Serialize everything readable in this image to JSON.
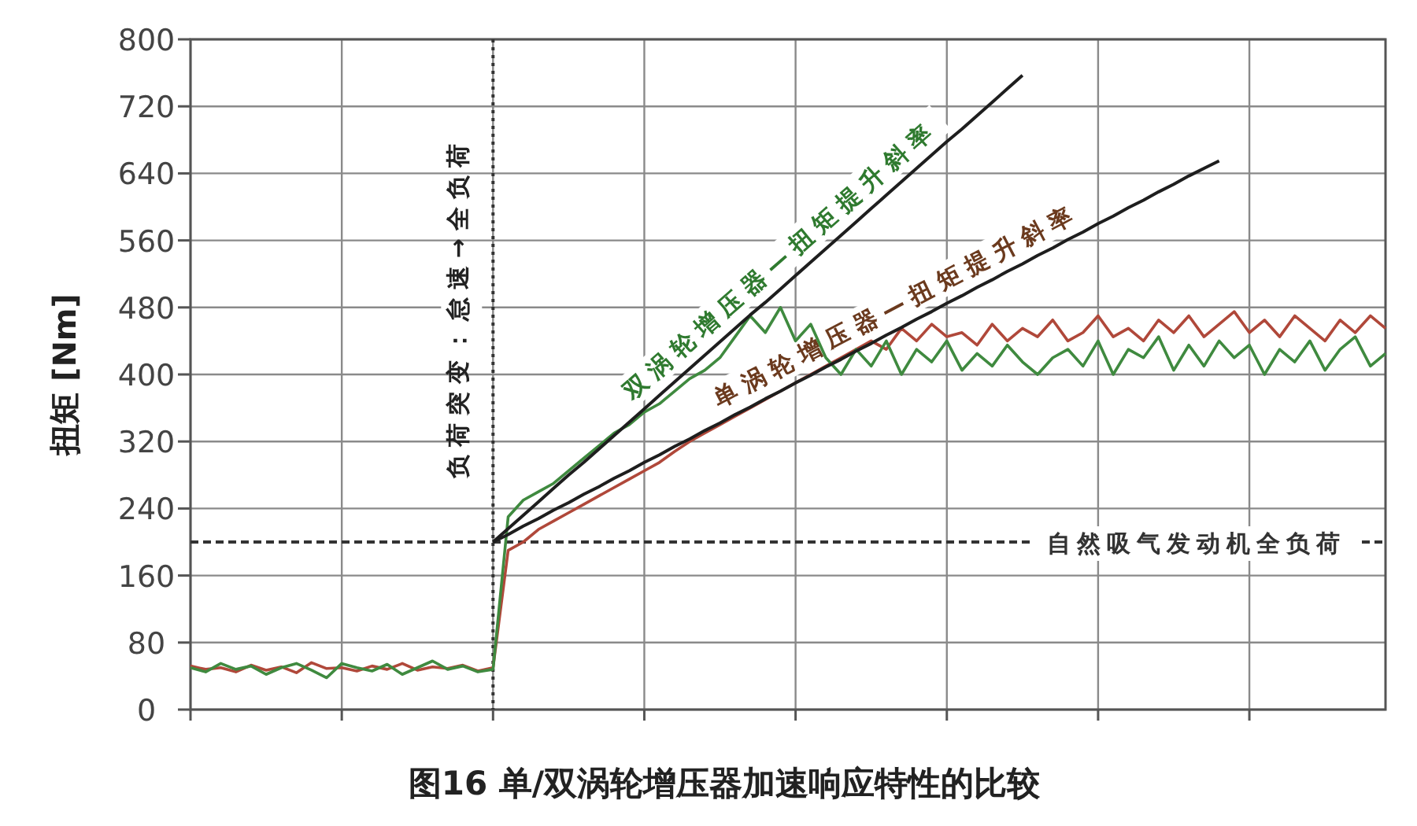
{
  "chart_data": {
    "type": "line",
    "title": "图16 单/双涡轮增压器加速响应特性的比较",
    "ylabel": "扭矩 [Nm]",
    "categories": [
      null,
      null,
      null,
      null,
      null,
      null,
      null,
      null,
      null,
      null,
      null,
      null,
      null,
      null,
      null,
      null,
      null,
      null,
      null,
      null,
      null,
      null,
      null,
      null,
      null,
      null,
      null,
      null,
      null,
      null,
      null,
      null,
      null,
      null,
      null,
      null,
      null,
      null,
      null,
      null,
      null,
      null,
      null,
      null,
      null,
      null,
      null,
      null,
      null,
      null,
      null,
      null,
      null,
      null,
      null,
      null,
      null,
      null,
      null,
      null,
      null,
      null,
      null,
      null,
      null,
      null,
      null,
      null,
      null,
      null,
      null,
      null,
      null,
      null,
      null,
      null,
      null,
      null,
      null,
      null
    ],
    "ylim": [
      0,
      800
    ],
    "yticks": [
      0,
      80,
      160,
      240,
      320,
      400,
      480,
      560,
      640,
      720,
      800
    ],
    "tick_labels": "y",
    "grid": true,
    "marker": "none",
    "ref_lines": [
      {
        "axis": "y",
        "value": 200,
        "label": "自然吸气发动机全负荷",
        "color": "#333333",
        "line_style": "dashed"
      }
    ],
    "annotations": [
      "负荷突变：怠速→全负荷"
    ],
    "series": [
      {
        "color": "#b0483a",
        "values": [
          52,
          48,
          50,
          45,
          53,
          47,
          51,
          44,
          56,
          49,
          50,
          46,
          52,
          48,
          55,
          47,
          51,
          49,
          53,
          46,
          50,
          190,
          200,
          215,
          225,
          235,
          245,
          255,
          265,
          275,
          285,
          295,
          308,
          320,
          330,
          340,
          350,
          360,
          370,
          380,
          390,
          400,
          410,
          420,
          430,
          440,
          430,
          455,
          440,
          460,
          445,
          450,
          435,
          460,
          440,
          455,
          445,
          465,
          440,
          450,
          470,
          445,
          455,
          440,
          465,
          450,
          470,
          445,
          460,
          475,
          450,
          465,
          445,
          470,
          455,
          440,
          465,
          450,
          470,
          455
        ]
      },
      {
        "color": "#3f8a3f",
        "values": [
          50,
          45,
          55,
          48,
          52,
          42,
          50,
          55,
          47,
          38,
          55,
          50,
          46,
          54,
          42,
          50,
          58,
          48,
          52,
          45,
          48,
          230,
          250,
          260,
          270,
          285,
          300,
          315,
          330,
          340,
          355,
          365,
          380,
          395,
          405,
          420,
          445,
          470,
          450,
          480,
          440,
          460,
          420,
          400,
          430,
          410,
          440,
          400,
          430,
          415,
          440,
          405,
          425,
          410,
          435,
          415,
          400,
          420,
          430,
          410,
          440,
          400,
          430,
          420,
          445,
          405,
          435,
          410,
          440,
          420,
          435,
          400,
          430,
          415,
          440,
          405,
          430,
          445,
          410,
          425
        ]
      },
      {
        "name": "双涡轮增压器—扭矩提升斜率",
        "color": "#1e1e1e",
        "values": [
          null,
          null,
          null,
          null,
          null,
          null,
          null,
          null,
          null,
          null,
          null,
          null,
          null,
          null,
          null,
          null,
          null,
          null,
          null,
          null,
          200,
          216,
          232,
          248,
          264,
          280,
          295,
          311,
          327,
          343,
          359,
          375,
          391,
          407,
          423,
          439,
          455,
          471,
          486,
          502,
          518,
          534,
          550,
          566,
          582,
          598,
          614,
          630,
          646,
          662,
          678,
          693,
          709,
          725,
          741,
          757,
          null,
          null,
          null,
          null,
          null,
          null,
          null,
          null,
          null,
          null,
          null,
          null,
          null,
          null,
          null,
          null,
          null,
          null,
          null,
          null,
          null,
          null,
          null,
          null
        ]
      },
      {
        "name": "单涡轮增压器—扭矩提升斜率",
        "color": "#1e1e1e",
        "values": [
          null,
          null,
          null,
          null,
          null,
          null,
          null,
          null,
          null,
          null,
          null,
          null,
          null,
          null,
          null,
          null,
          null,
          null,
          null,
          null,
          200,
          209,
          219,
          228,
          238,
          247,
          257,
          266,
          276,
          285,
          295,
          304,
          314,
          323,
          333,
          342,
          352,
          361,
          371,
          380,
          390,
          399,
          409,
          418,
          428,
          437,
          447,
          456,
          466,
          475,
          485,
          494,
          504,
          513,
          523,
          532,
          542,
          551,
          561,
          570,
          580,
          589,
          599,
          608,
          618,
          627,
          637,
          646,
          655,
          null,
          null,
          null,
          null,
          null,
          null,
          null,
          null,
          null,
          null,
          null
        ]
      }
    ]
  }
}
